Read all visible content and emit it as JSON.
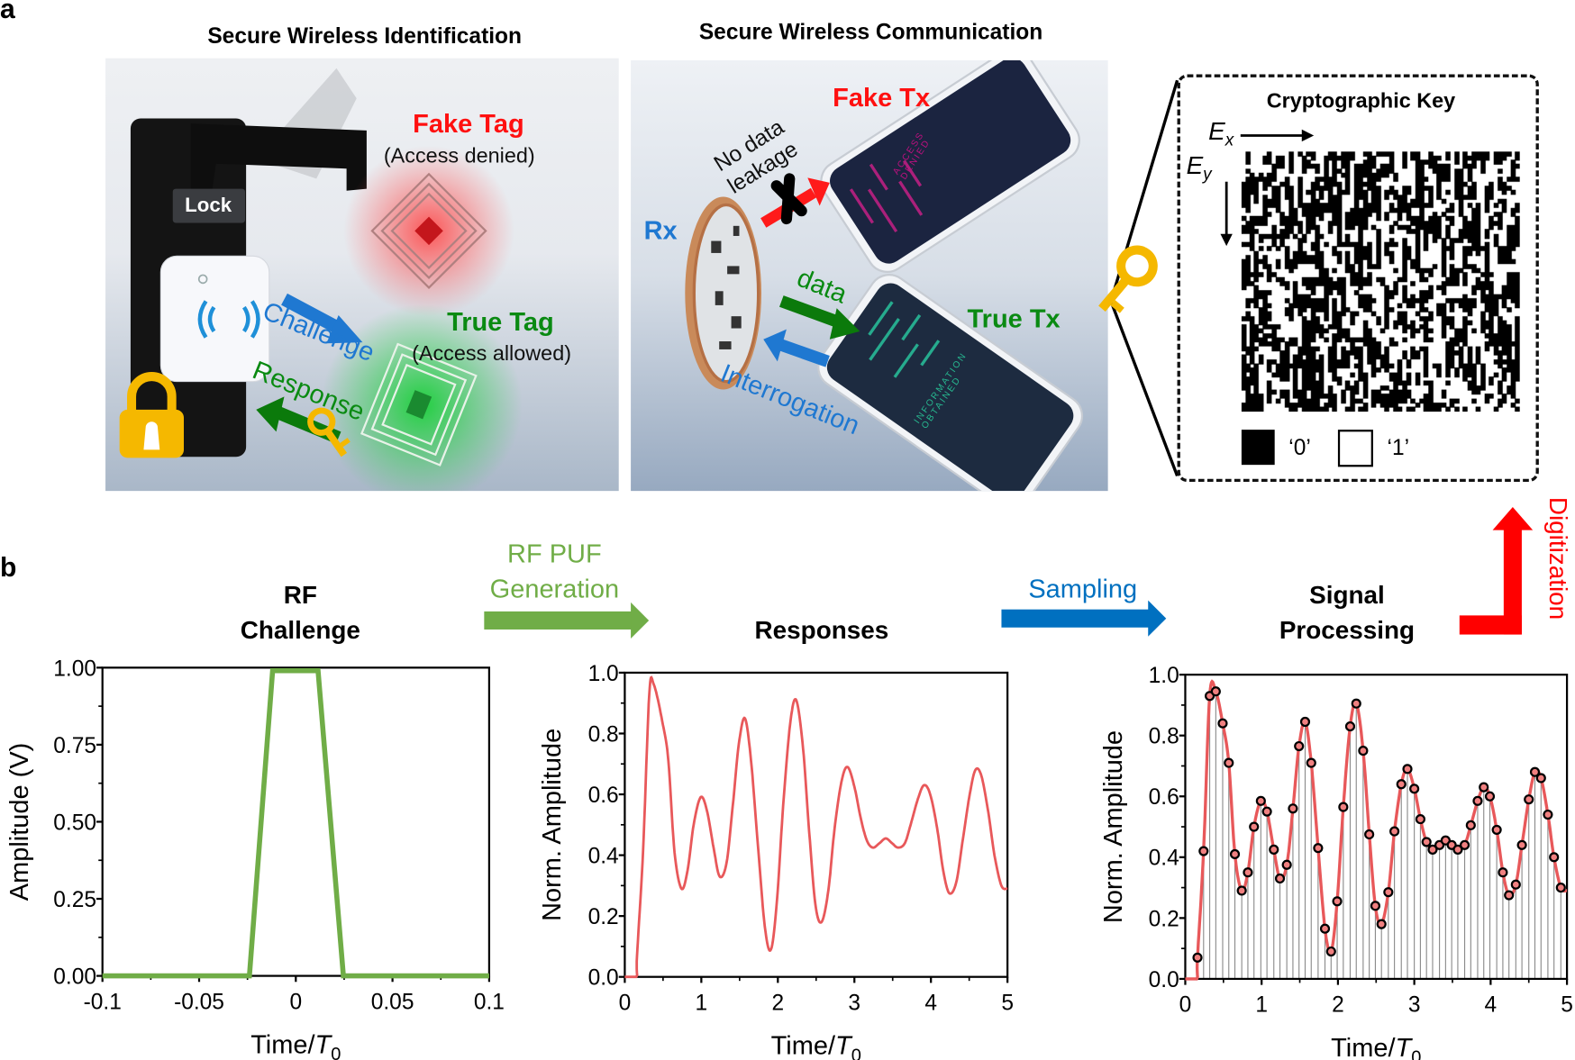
{
  "panel_a": {
    "letter": "a",
    "left_title": "Secure Wireless Identification",
    "right_title": "Secure Wireless Communication",
    "lock_label": "Lock",
    "fake_tag": "Fake Tag",
    "fake_tag_status": "(Access denied)",
    "true_tag": "True Tag",
    "true_tag_status": "(Access allowed)",
    "challenge": "Challenge",
    "response": "Response",
    "no_leak_line1": "No data",
    "no_leak_line2": "leakage",
    "fake_tx": "Fake Tx",
    "true_tx": "True Tx",
    "rx": "Rx",
    "data": "data",
    "interrogation": "Interrogation",
    "fake_screen_line1": "ACCESS",
    "fake_screen_line2": "DENIED",
    "true_screen_line1": "INFORMATION",
    "true_screen_line2": "OBTAINED",
    "key": {
      "title": "Cryptographic Key",
      "ex_var": "E",
      "ex_sub": "x",
      "ey_var": "E",
      "ey_sub": "y",
      "legend_zero": "‘0’",
      "legend_one": "‘1’"
    }
  },
  "panel_b": {
    "letter": "b",
    "rf_challenge_line1": "RF",
    "rf_challenge_line2": "Challenge",
    "puf_line1": "RF PUF",
    "puf_line2": "Generation",
    "responses": "Responses",
    "sampling": "Sampling",
    "signal_line1": "Signal",
    "signal_line2": "Processing",
    "digitization": "Digitization"
  },
  "colors": {
    "green_arrow": "#70ad47",
    "blue_arrow": "#0070c0",
    "red_arrow": "#ff0000",
    "curve": "#e8585a",
    "challenge_line": "#70ad47"
  },
  "chart_data": [
    {
      "type": "line",
      "title": "RF Challenge",
      "xlabel_prefix": "Time/",
      "xlabel_var": "T",
      "xlabel_sub": "0",
      "ylabel": "Amplitude (V)",
      "xlim": [
        -0.1,
        0.1
      ],
      "ylim": [
        0,
        1
      ],
      "xticks": [
        -0.1,
        -0.05,
        0,
        0.05,
        0.1
      ],
      "xtick_labels": [
        "-0.1",
        "-0.05",
        "0",
        "0.05",
        "0.1"
      ],
      "yticks": [
        0,
        0.25,
        0.5,
        0.75,
        1.0
      ],
      "ytick_labels": [
        "0.00",
        "0.25",
        "0.50",
        "0.75",
        "1.00"
      ],
      "x": [
        -0.1,
        -0.024,
        -0.012,
        0.0115,
        0.0246,
        0.1
      ],
      "y": [
        0,
        0,
        0.99,
        0.99,
        0,
        0
      ]
    },
    {
      "type": "line",
      "title": "Responses",
      "xlabel_prefix": "Time/",
      "xlabel_var": "T",
      "xlabel_sub": "0",
      "ylabel": "Norm. Amplitude",
      "xlim": [
        0,
        5
      ],
      "ylim": [
        0,
        1
      ],
      "xticks": [
        0,
        1,
        2,
        3,
        4,
        5
      ],
      "xtick_labels": [
        "0",
        "1",
        "2",
        "3",
        "4",
        "5"
      ],
      "yticks": [
        0,
        0.2,
        0.4,
        0.6,
        0.8,
        1.0
      ],
      "ytick_labels": [
        "0.0",
        "0.2",
        "0.4",
        "0.6",
        "0.8",
        "1.0"
      ],
      "x": [
        0,
        0.15,
        0.16,
        0.24,
        0.32,
        0.38,
        0.49,
        0.57,
        0.65,
        0.74,
        0.82,
        0.9,
        0.99,
        1.07,
        1.16,
        1.24,
        1.33,
        1.41,
        1.49,
        1.57,
        1.65,
        1.74,
        1.83,
        1.91,
        1.99,
        2.07,
        2.16,
        2.24,
        2.33,
        2.41,
        2.49,
        2.57,
        2.66,
        2.74,
        2.83,
        2.91,
        3.0,
        3.08,
        3.16,
        3.24,
        3.33,
        3.41,
        3.49,
        3.57,
        3.66,
        3.74,
        3.83,
        3.91,
        3.99,
        4.08,
        4.16,
        4.24,
        4.33,
        4.41,
        4.5,
        4.58,
        4.66,
        4.75,
        4.83,
        4.92,
        5.0
      ],
      "y": [
        0,
        0,
        0.07,
        0.42,
        0.93,
        0.96,
        0.84,
        0.71,
        0.41,
        0.29,
        0.35,
        0.5,
        0.59,
        0.55,
        0.425,
        0.33,
        0.375,
        0.56,
        0.765,
        0.85,
        0.71,
        0.43,
        0.165,
        0.09,
        0.255,
        0.565,
        0.83,
        0.91,
        0.75,
        0.475,
        0.24,
        0.18,
        0.285,
        0.485,
        0.64,
        0.69,
        0.625,
        0.525,
        0.45,
        0.425,
        0.44,
        0.455,
        0.44,
        0.425,
        0.44,
        0.505,
        0.585,
        0.63,
        0.6,
        0.49,
        0.35,
        0.275,
        0.31,
        0.44,
        0.59,
        0.68,
        0.66,
        0.54,
        0.4,
        0.3,
        0.29
      ]
    },
    {
      "type": "scatter",
      "title": "Signal Processing",
      "xlabel_prefix": "Time/",
      "xlabel_var": "T",
      "xlabel_sub": "0",
      "ylabel": "Norm. Amplitude",
      "xlim": [
        0,
        5
      ],
      "ylim": [
        0,
        1
      ],
      "xticks": [
        0,
        1,
        2,
        3,
        4,
        5
      ],
      "xtick_labels": [
        "0",
        "1",
        "2",
        "3",
        "4",
        "5"
      ],
      "yticks": [
        0,
        0.2,
        0.4,
        0.6,
        0.8,
        1.0
      ],
      "ytick_labels": [
        "0.0",
        "0.2",
        "0.4",
        "0.6",
        "0.8",
        "1.0"
      ],
      "samples_x": [
        0.16,
        0.24,
        0.32,
        0.4,
        0.49,
        0.57,
        0.65,
        0.74,
        0.82,
        0.9,
        0.99,
        1.07,
        1.16,
        1.24,
        1.33,
        1.41,
        1.49,
        1.57,
        1.65,
        1.74,
        1.83,
        1.91,
        1.99,
        2.07,
        2.16,
        2.24,
        2.33,
        2.41,
        2.49,
        2.57,
        2.66,
        2.74,
        2.83,
        2.91,
        3.0,
        3.08,
        3.16,
        3.24,
        3.33,
        3.41,
        3.49,
        3.57,
        3.66,
        3.74,
        3.83,
        3.91,
        3.99,
        4.08,
        4.16,
        4.24,
        4.33,
        4.41,
        4.5,
        4.58,
        4.66,
        4.75,
        4.83,
        4.92
      ],
      "samples_y": [
        0.07,
        0.42,
        0.93,
        0.945,
        0.84,
        0.71,
        0.41,
        0.29,
        0.35,
        0.5,
        0.585,
        0.55,
        0.425,
        0.33,
        0.375,
        0.56,
        0.765,
        0.845,
        0.71,
        0.43,
        0.165,
        0.09,
        0.255,
        0.565,
        0.83,
        0.905,
        0.75,
        0.475,
        0.24,
        0.18,
        0.285,
        0.485,
        0.64,
        0.69,
        0.625,
        0.525,
        0.45,
        0.425,
        0.44,
        0.455,
        0.44,
        0.425,
        0.44,
        0.505,
        0.585,
        0.63,
        0.6,
        0.49,
        0.35,
        0.275,
        0.31,
        0.44,
        0.59,
        0.68,
        0.66,
        0.54,
        0.4,
        0.3
      ]
    }
  ]
}
